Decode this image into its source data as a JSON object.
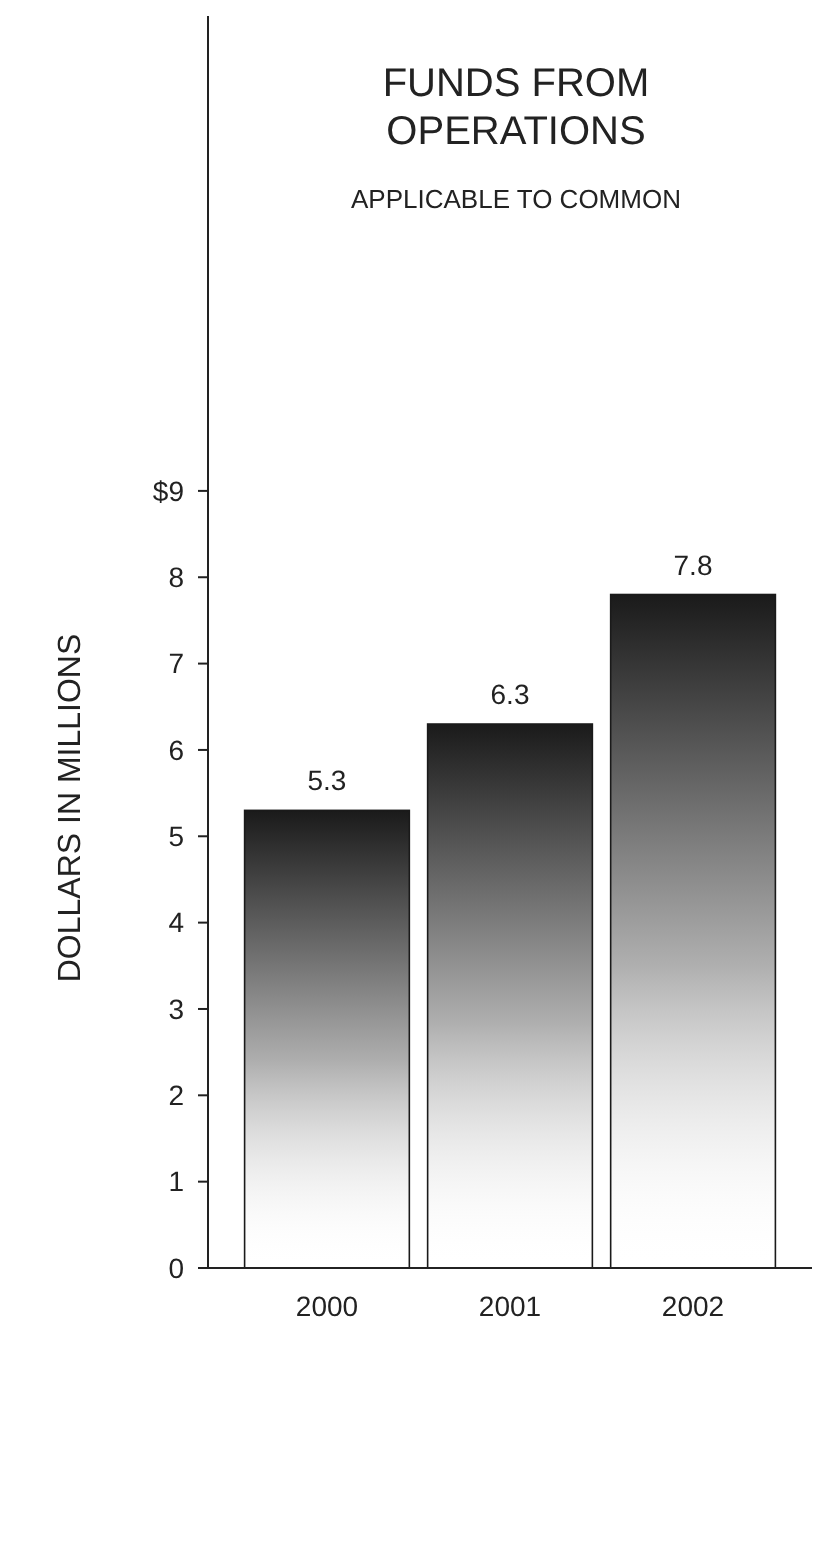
{
  "chart_data": {
    "type": "bar",
    "title": "FUNDS FROM\nOPERATIONS",
    "subtitle": "APPLICABLE TO COMMON",
    "ylabel": "DOLLARS IN MILLIONS",
    "categories": [
      "2000",
      "2001",
      "2002"
    ],
    "values": [
      5.3,
      6.3,
      7.8
    ],
    "color": "#1a1a1a",
    "ylim": [
      0,
      14.5
    ],
    "yticks": [
      0,
      1,
      2,
      3,
      4,
      5,
      6,
      7,
      8,
      {
        "value": 9,
        "label": "$9"
      }
    ],
    "data_labels": true,
    "grid": false
  }
}
